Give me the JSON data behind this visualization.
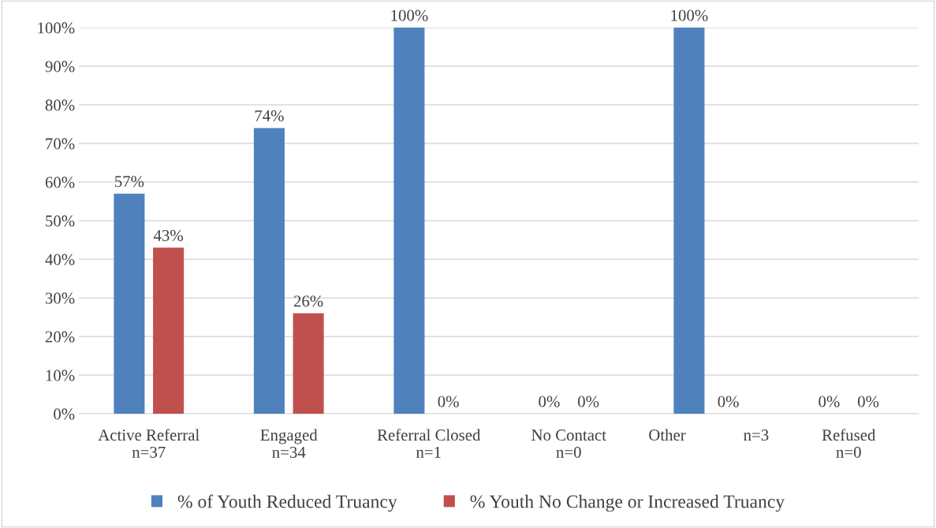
{
  "chart_data": {
    "type": "bar",
    "categories": [
      "Active Referral\nn=37",
      "Engaged\nn=34",
      "Referral Closed\nn=1",
      "No Contact\nn=0",
      "Other              n=3",
      "Refused\nn=0"
    ],
    "series": [
      {
        "name": "% of Youth Reduced Truancy",
        "color": "#4f81bd",
        "values": [
          57,
          74,
          100,
          0,
          100,
          0
        ]
      },
      {
        "name": "% Youth No Change or Increased Truancy",
        "color": "#c0504d",
        "values": [
          43,
          26,
          0,
          0,
          0,
          0
        ]
      }
    ],
    "ylim": [
      0,
      100
    ],
    "yticks": [
      {
        "value": 0,
        "label": "0%"
      },
      {
        "value": 10,
        "label": "10%"
      },
      {
        "value": 20,
        "label": "20%"
      },
      {
        "value": 30,
        "label": "30%"
      },
      {
        "value": 40,
        "label": "40%"
      },
      {
        "value": 50,
        "label": "50%"
      },
      {
        "value": 60,
        "label": "60%"
      },
      {
        "value": 70,
        "label": "70%"
      },
      {
        "value": 80,
        "label": "80%"
      },
      {
        "value": 90,
        "label": "90%"
      },
      {
        "value": 100,
        "label": "100%"
      }
    ],
    "value_labels": [
      [
        "57%",
        "74%",
        "100%",
        "0%",
        "100%",
        "0%"
      ],
      [
        "43%",
        "26%",
        "0%",
        "0%",
        "0%",
        "0%"
      ]
    ],
    "grid": "y",
    "legend": "bottom"
  }
}
